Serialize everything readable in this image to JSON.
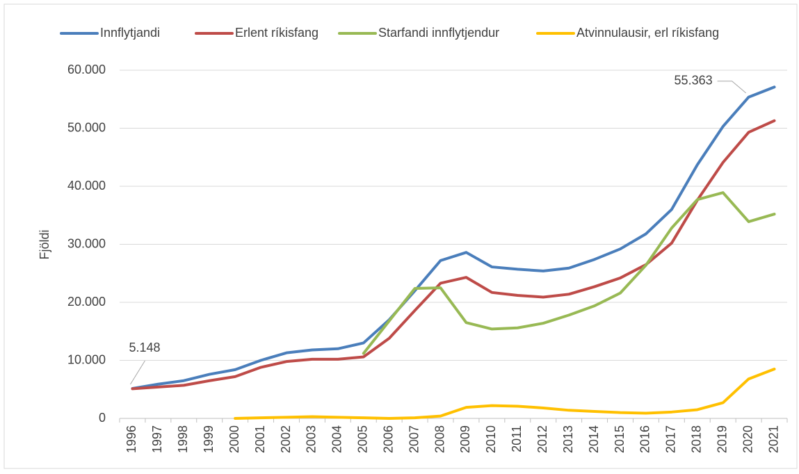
{
  "chart_data": {
    "type": "line",
    "y_label": "Fjöldi",
    "categories": [
      "1996",
      "1997",
      "1998",
      "1999",
      "2000",
      "2001",
      "2002",
      "2003",
      "2004",
      "2005",
      "2006",
      "2007",
      "2008",
      "2009",
      "2010",
      "2011",
      "2012",
      "2013",
      "2014",
      "2015",
      "2016",
      "2017",
      "2018",
      "2019",
      "2020",
      "2021"
    ],
    "series": [
      {
        "name": "Innflytjandi",
        "color": "#4a7ebb",
        "values": [
          5148,
          5900,
          6500,
          7600,
          8400,
          10000,
          11300,
          11800,
          12000,
          13000,
          17000,
          22000,
          27200,
          28600,
          26100,
          25700,
          25400,
          25900,
          27400,
          29200,
          31800,
          36000,
          43700,
          50300,
          55363,
          57100
        ],
        "value_labels": [
          "5.148",
          null,
          null,
          null,
          null,
          null,
          null,
          null,
          null,
          null,
          null,
          null,
          null,
          null,
          null,
          null,
          null,
          null,
          null,
          null,
          null,
          null,
          null,
          null,
          "55.363",
          null
        ]
      },
      {
        "name": "Erlent ríkisfang",
        "color": "#be4b48",
        "values": [
          5100,
          5400,
          5700,
          6500,
          7200,
          8800,
          9800,
          10200,
          10200,
          10600,
          13800,
          18600,
          23300,
          24300,
          21700,
          21200,
          20900,
          21400,
          22700,
          24200,
          26500,
          30200,
          37600,
          44100,
          49300,
          51300
        ]
      },
      {
        "name": "Starfandi innflytjendur",
        "color": "#98b954",
        "values": [
          null,
          null,
          null,
          null,
          null,
          null,
          null,
          null,
          null,
          11200,
          16800,
          22400,
          22500,
          16500,
          15400,
          15600,
          16400,
          17800,
          19400,
          21600,
          26400,
          32800,
          37700,
          38900,
          33900,
          35200
        ]
      },
      {
        "name": "Atvinnulausir, erl ríkisfang",
        "color": "#ffc000",
        "values": [
          null,
          null,
          null,
          null,
          0,
          100,
          200,
          300,
          200,
          100,
          0,
          100,
          400,
          1900,
          2200,
          2100,
          1800,
          1400,
          1200,
          1000,
          900,
          1100,
          1500,
          2700,
          6800,
          8500
        ]
      }
    ],
    "ylim": [
      0,
      60000
    ],
    "yticks": [
      0,
      {
        "value": 10000,
        "label": "10.000"
      },
      {
        "value": 20000,
        "label": "20.000"
      },
      {
        "value": 30000,
        "label": "30.000"
      },
      {
        "value": 40000,
        "label": "40.000"
      },
      {
        "value": 50000,
        "label": "50.000"
      },
      {
        "value": 60000,
        "label": "60.000"
      }
    ],
    "grid": true,
    "legend": "top"
  }
}
